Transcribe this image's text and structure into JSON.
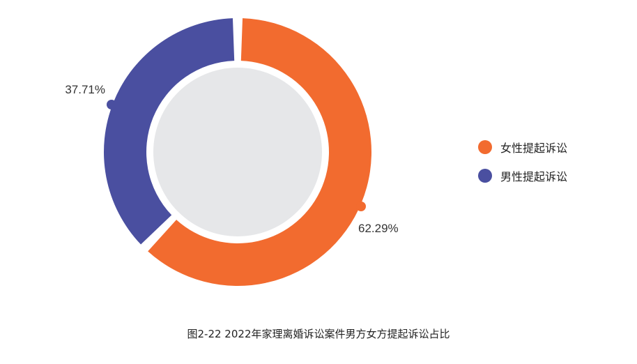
{
  "chart_data": {
    "type": "pie",
    "subtype": "donut",
    "title": "图2-22  2022年家理离婚诉讼案件男方女方提起诉讼占比",
    "slices": [
      {
        "name": "女性提起诉讼",
        "value": 62.29,
        "label": "62.29%",
        "color": "#F26B2F"
      },
      {
        "name": "男性提起诉讼",
        "value": 37.71,
        "label": "37.71%",
        "color": "#4A4FA0"
      }
    ],
    "legend_position": "right",
    "center_fill": "#E6E7E9"
  }
}
